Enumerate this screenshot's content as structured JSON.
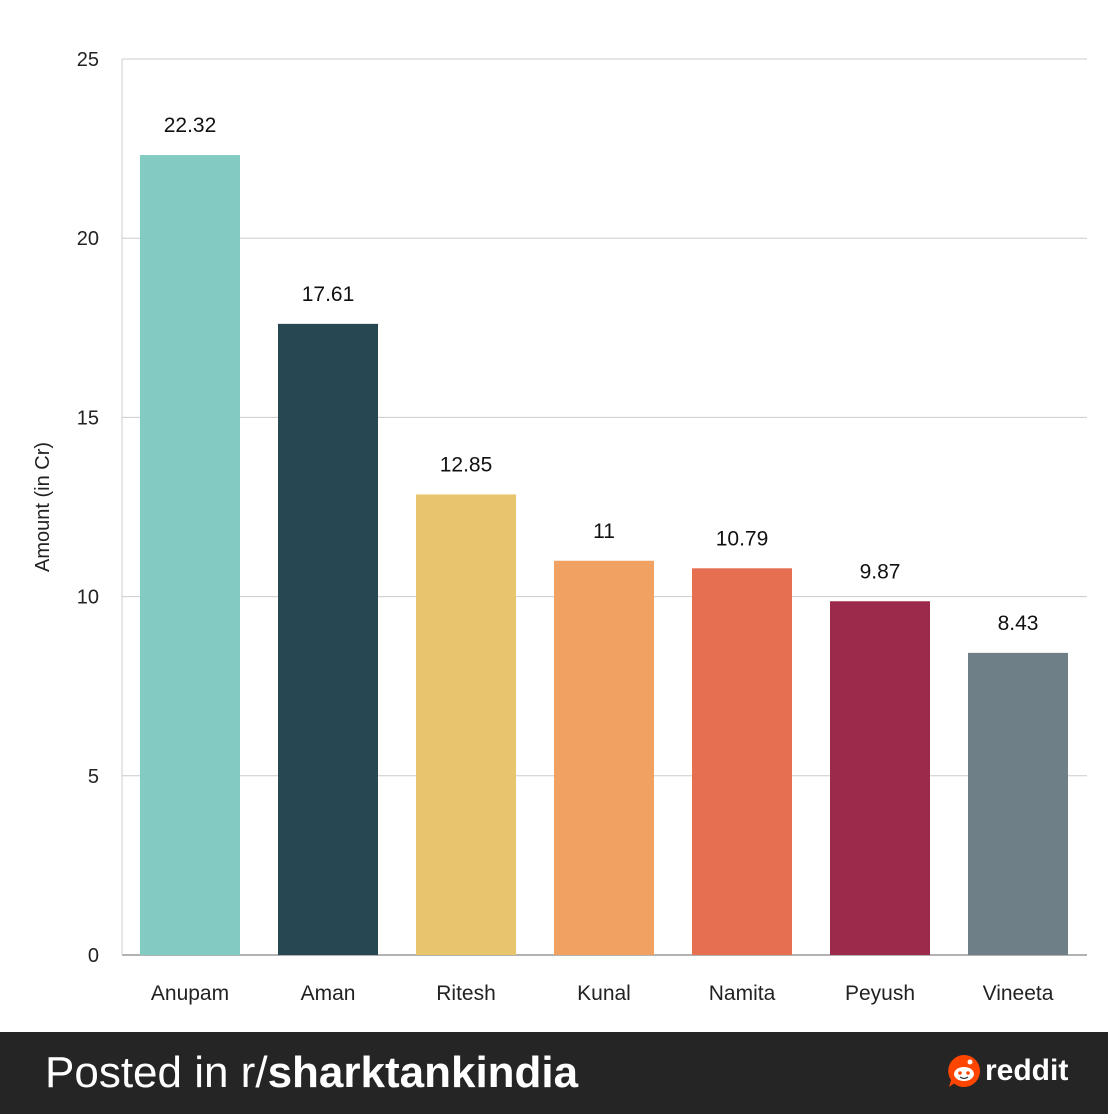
{
  "chart_data": {
    "type": "bar",
    "title": "",
    "xlabel": "",
    "ylabel": "Amount (in Cr)",
    "ylim": [
      0,
      25
    ],
    "yticks": [
      0,
      5,
      10,
      15,
      20,
      25
    ],
    "grid": true,
    "categories": [
      "Anupam",
      "Aman",
      "Ritesh",
      "Kunal",
      "Namita",
      "Peyush",
      "Vineeta"
    ],
    "values": [
      22.32,
      17.61,
      12.85,
      11,
      10.79,
      9.87,
      8.43
    ],
    "value_labels": [
      "22.32",
      "17.61",
      "12.85",
      "11",
      "10.79",
      "9.87",
      "8.43"
    ],
    "colors": [
      "#82cac2",
      "#274753",
      "#e8c46c",
      "#f1a262",
      "#e66f51",
      "#9c2a4a",
      "#6f7f88"
    ]
  },
  "footer": {
    "posted_prefix": "Posted in r/",
    "subreddit": "sharktankindia",
    "brand": "reddit",
    "brand_color": "#ff4500"
  }
}
